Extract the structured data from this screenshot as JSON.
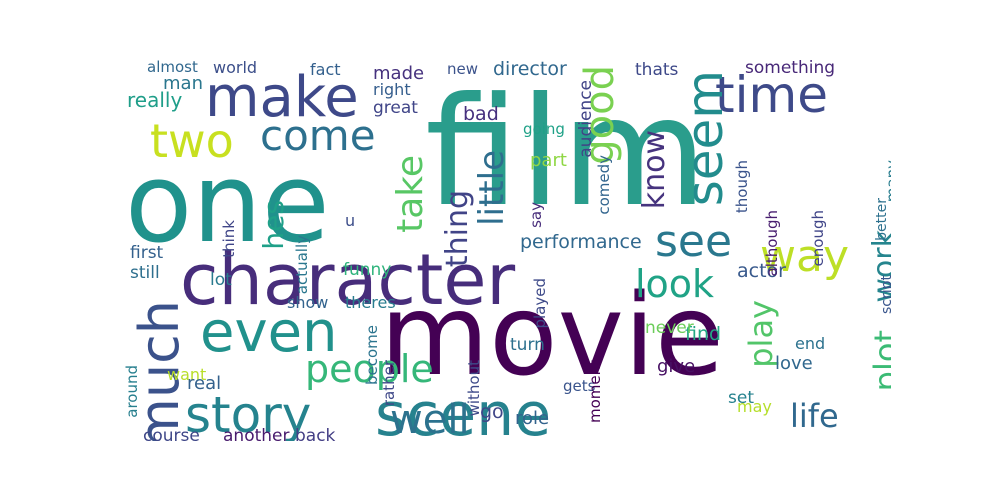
{
  "words": [
    {
      "text": "film",
      "color": "#2a9d8c"
    },
    {
      "text": "one",
      "color": "#20928c"
    },
    {
      "text": "movie",
      "color": "#440154"
    },
    {
      "text": "character",
      "color": "#472d7b"
    },
    {
      "text": "scene",
      "color": "#26828e"
    },
    {
      "text": "story",
      "color": "#25838e"
    },
    {
      "text": "make",
      "color": "#3e4989"
    },
    {
      "text": "even",
      "color": "#21918c"
    },
    {
      "text": "much",
      "color": "#3b528b"
    },
    {
      "text": "time",
      "color": "#3e4a89"
    },
    {
      "text": "seem",
      "color": "#228c8d"
    },
    {
      "text": "two",
      "color": "#c8e020"
    },
    {
      "text": "come",
      "color": "#2d708e"
    },
    {
      "text": "well",
      "color": "#2c728e"
    },
    {
      "text": "see",
      "color": "#2a788e"
    },
    {
      "text": "way",
      "color": "#bddf26"
    },
    {
      "text": "good",
      "color": "#7ad151"
    },
    {
      "text": "people",
      "color": "#35b779"
    },
    {
      "text": "look",
      "color": "#20a386"
    },
    {
      "text": "plot",
      "color": "#3bbb75"
    },
    {
      "text": "take",
      "color": "#58c765"
    },
    {
      "text": "life",
      "color": "#30688e"
    },
    {
      "text": "know",
      "color": "#46337e"
    },
    {
      "text": "little",
      "color": "#2e6e8e"
    },
    {
      "text": "thing",
      "color": "#414487"
    },
    {
      "text": "work",
      "color": "#25858e"
    },
    {
      "text": "play",
      "color": "#52c569"
    },
    {
      "text": "hes",
      "color": "#1fa088"
    },
    {
      "text": "performance",
      "color": "#31688e"
    },
    {
      "text": "actor",
      "color": "#38598c"
    },
    {
      "text": "director",
      "color": "#31688e"
    },
    {
      "text": "really",
      "color": "#1f9e89"
    },
    {
      "text": "man",
      "color": "#2a768e"
    },
    {
      "text": "first",
      "color": "#34618d"
    },
    {
      "text": "made",
      "color": "#46327e"
    },
    {
      "text": "audience",
      "color": "#414487"
    },
    {
      "text": "something",
      "color": "#482878"
    },
    {
      "text": "thats",
      "color": "#3e4989"
    },
    {
      "text": "find",
      "color": "#22a884"
    },
    {
      "text": "turn",
      "color": "#2d708e"
    },
    {
      "text": "give",
      "color": "#471063"
    },
    {
      "text": "love",
      "color": "#31688e"
    },
    {
      "text": "course",
      "color": "#3f4788"
    },
    {
      "text": "another",
      "color": "#481b6d"
    },
    {
      "text": "back",
      "color": "#433e85"
    },
    {
      "text": "role",
      "color": "#33638d"
    },
    {
      "text": "set",
      "color": "#26828e"
    },
    {
      "text": "may",
      "color": "#b5de2b"
    },
    {
      "text": "go",
      "color": "#404688"
    },
    {
      "text": "never",
      "color": "#6ccd5a"
    },
    {
      "text": "played",
      "color": "#3e4a89"
    },
    {
      "text": "show",
      "color": "#33638d"
    },
    {
      "text": "theres",
      "color": "#287c8e"
    },
    {
      "text": "funny",
      "color": "#2fb47c"
    },
    {
      "text": "end",
      "color": "#2c728e"
    },
    {
      "text": "lot",
      "color": "#297a8e"
    },
    {
      "text": "still",
      "color": "#2e6f8e"
    },
    {
      "text": "bad",
      "color": "#46307e"
    },
    {
      "text": "part",
      "color": "#8fd744"
    },
    {
      "text": "going",
      "color": "#1fa187"
    },
    {
      "text": "great",
      "color": "#404588"
    },
    {
      "text": "right",
      "color": "#355e8d"
    },
    {
      "text": "fact",
      "color": "#34608d"
    },
    {
      "text": "new",
      "color": "#3b528b"
    },
    {
      "text": "world",
      "color": "#3c4f8a"
    },
    {
      "text": "almost",
      "color": "#31688e"
    },
    {
      "text": "want",
      "color": "#b8de29"
    },
    {
      "text": "real",
      "color": "#34618d"
    },
    {
      "text": "around",
      "color": "#277f8e"
    },
    {
      "text": "become",
      "color": "#2b748e"
    },
    {
      "text": "gets",
      "color": "#3a548c"
    },
    {
      "text": "many",
      "color": "#287d8e"
    },
    {
      "text": "enough",
      "color": "#404588"
    },
    {
      "text": "although",
      "color": "#481d6f"
    },
    {
      "text": "though",
      "color": "#3a538b"
    },
    {
      "text": "comedy",
      "color": "#32658e"
    },
    {
      "text": "say",
      "color": "#472c7a"
    },
    {
      "text": "script",
      "color": "#39558c"
    },
    {
      "text": "better",
      "color": "#2d718e"
    },
    {
      "text": "moment",
      "color": "#440154"
    },
    {
      "text": "without",
      "color": "#3e4a89"
    },
    {
      "text": "rather",
      "color": "#3f4889"
    },
    {
      "text": "actually",
      "color": "#2a778e"
    },
    {
      "text": "think",
      "color": "#404688"
    },
    {
      "text": "u",
      "color": "#3d4e8a"
    }
  ]
}
